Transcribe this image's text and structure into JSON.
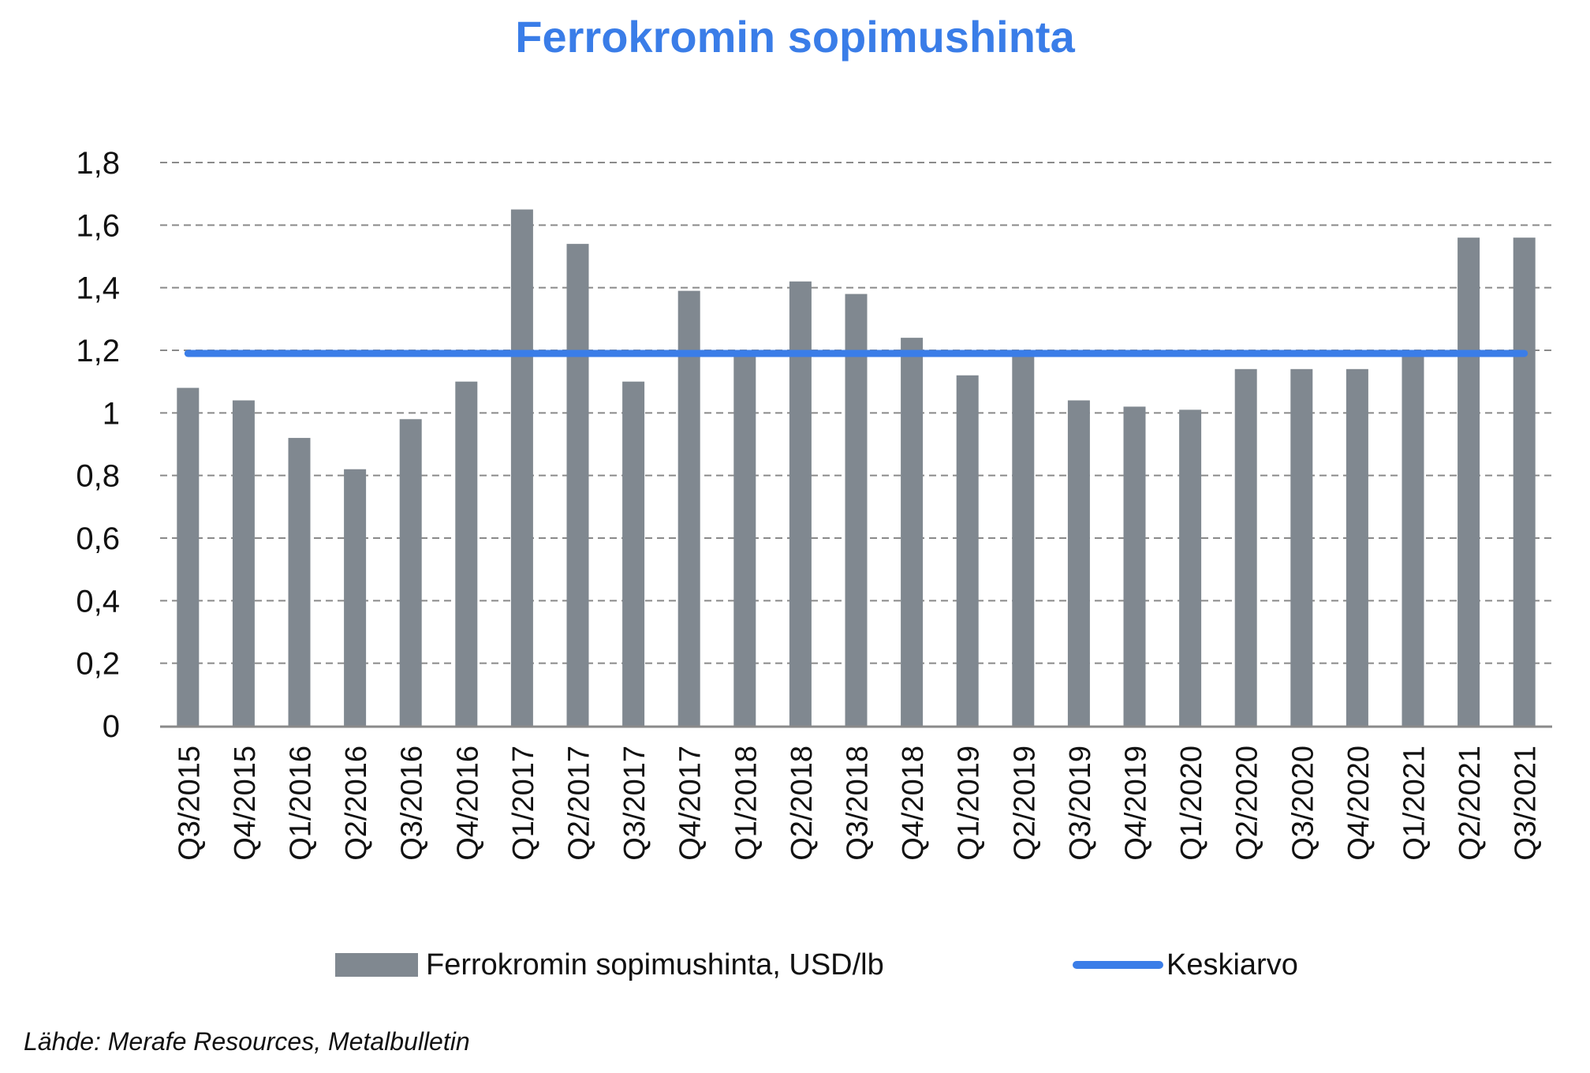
{
  "title": "Ferrokromin sopimushinta",
  "source": "Lähde: Merafe Resources, Metalbulletin",
  "legend": {
    "bars_label": "Ferrokromin sopimushinta, USD/lb",
    "line_label": "Keskiarvo"
  },
  "colors": {
    "bars": "#808890",
    "line": "#3a7de8",
    "title": "#3a7de8",
    "grid": "#8a8a8a"
  },
  "chart_data": {
    "type": "bar",
    "title": "Ferrokromin sopimushinta",
    "categories": [
      "Q3/2015",
      "Q4/2015",
      "Q1/2016",
      "Q2/2016",
      "Q3/2016",
      "Q4/2016",
      "Q1/2017",
      "Q2/2017",
      "Q3/2017",
      "Q4/2017",
      "Q1/2018",
      "Q2/2018",
      "Q3/2018",
      "Q4/2018",
      "Q1/2019",
      "Q2/2019",
      "Q3/2019",
      "Q4/2019",
      "Q1/2020",
      "Q2/2020",
      "Q3/2020",
      "Q4/2020",
      "Q1/2021",
      "Q2/2021",
      "Q3/2021"
    ],
    "series": [
      {
        "name": "Ferrokromin sopimushinta, USD/lb",
        "type": "bar",
        "values": [
          1.08,
          1.04,
          0.92,
          0.82,
          0.98,
          1.1,
          1.65,
          1.54,
          1.1,
          1.39,
          1.19,
          1.42,
          1.38,
          1.24,
          1.12,
          1.19,
          1.04,
          1.02,
          1.01,
          1.14,
          1.14,
          1.14,
          1.19,
          1.56,
          1.56
        ]
      },
      {
        "name": "Keskiarvo",
        "type": "line",
        "values": [
          1.19,
          1.19,
          1.19,
          1.19,
          1.19,
          1.19,
          1.19,
          1.19,
          1.19,
          1.19,
          1.19,
          1.19,
          1.19,
          1.19,
          1.19,
          1.19,
          1.19,
          1.19,
          1.19,
          1.19,
          1.19,
          1.19,
          1.19,
          1.19,
          1.19
        ]
      }
    ],
    "ylim": [
      0,
      1.8
    ],
    "yticks": [
      "0",
      "0,2",
      "0,4",
      "0,6",
      "0,8",
      "1",
      "1,2",
      "1,4",
      "1,6",
      "1,8"
    ],
    "grid": true,
    "legend_position": "bottom"
  }
}
